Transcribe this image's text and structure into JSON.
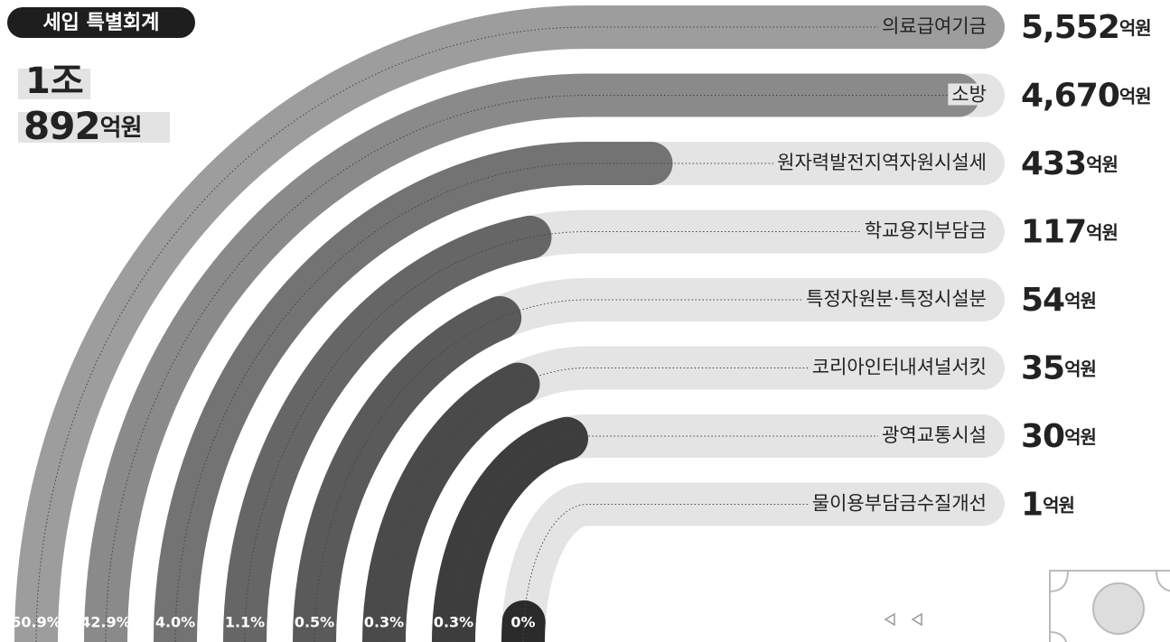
{
  "chart_data": {
    "type": "radial-bar",
    "title": "세입 특별회계",
    "total_lines": [
      "1조",
      "892"
    ],
    "unit": "억원",
    "log": true,
    "categories": [
      "의료급여기금",
      "소방",
      "원자력발전지역자원시설세",
      "학교용지부담금",
      "특정자원분·특정시설분",
      "코리아인터내셔널서킷",
      "광역교통시설",
      "물이용부담금수질개선"
    ],
    "values": [
      5552,
      4670,
      433,
      117,
      54,
      35,
      30,
      1
    ],
    "value_labels": [
      "5,552",
      "4,670",
      "433",
      "117",
      "54",
      "35",
      "30",
      "1"
    ],
    "shares": [
      50.9,
      42.9,
      4.0,
      1.1,
      0.5,
      0.3,
      0.3,
      0
    ],
    "share_labels": [
      "50.9%",
      "42.9%",
      "4.0%",
      "1.1%",
      "0.5%",
      "0.3%",
      "0.3%",
      "0%"
    ],
    "colors": [
      "#9d9d9d",
      "#8a8a8a",
      "#737373",
      "#666666",
      "#5a5a5a",
      "#4a4a4a",
      "#3d3d3d",
      "#2b2b2b"
    ],
    "track_color": "#e4e4e4"
  }
}
